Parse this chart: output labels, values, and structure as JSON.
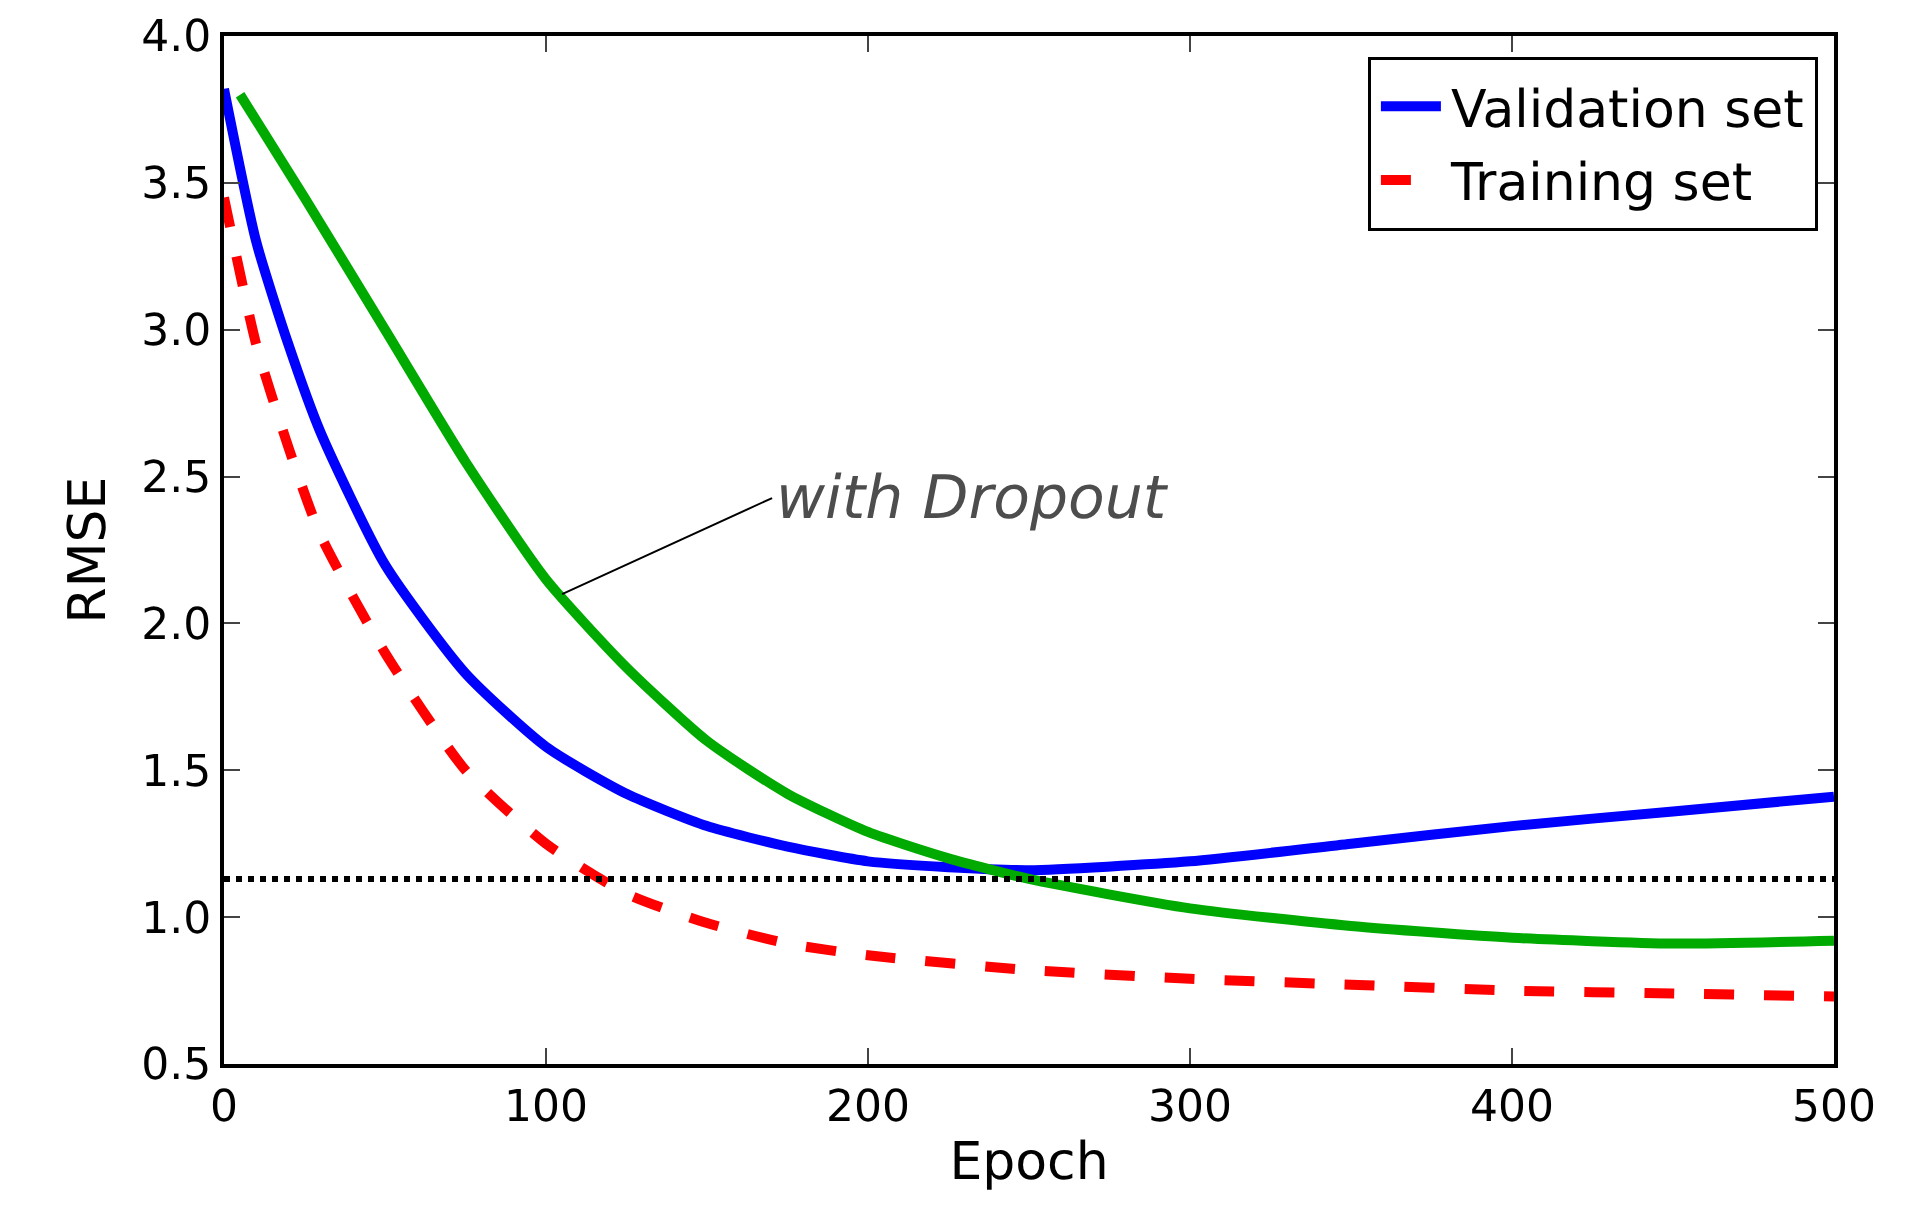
{
  "chart_data": {
    "type": "line",
    "xlabel": "Epoch",
    "ylabel": "RMSE",
    "xlim": [
      0,
      500
    ],
    "xticks": [
      0,
      100,
      200,
      300,
      400,
      500
    ],
    "ylim": [
      0.5,
      4.0
    ],
    "yticks": [
      0.5,
      {
        "value": 1,
        "label": "1.0"
      },
      1.5,
      {
        "value": 2,
        "label": "2.0"
      },
      2.5,
      {
        "value": 3,
        "label": "3.0"
      },
      3.5,
      {
        "value": 4,
        "label": "4.0"
      }
    ],
    "grid": false,
    "legend": "top right",
    "series": [
      {
        "name": "Validation set",
        "color": "#0000ff",
        "line_style": "solid",
        "x": [
          0,
          10,
          20,
          30,
          50,
          75,
          100,
          125,
          150,
          175,
          200,
          225,
          250,
          300,
          350,
          400,
          450,
          500
        ],
        "values": [
          3.82,
          3.3,
          2.95,
          2.65,
          2.2,
          1.83,
          1.58,
          1.42,
          1.31,
          1.24,
          1.19,
          1.17,
          1.16,
          1.19,
          1.25,
          1.31,
          1.36,
          1.41
        ]
      },
      {
        "name": "Training set",
        "color": "#ff0000",
        "line_style": "dashed",
        "x": [
          0,
          10,
          20,
          30,
          50,
          75,
          100,
          125,
          150,
          175,
          200,
          250,
          300,
          350,
          400,
          450,
          500
        ],
        "values": [
          3.45,
          2.95,
          2.6,
          2.3,
          1.9,
          1.5,
          1.25,
          1.08,
          0.98,
          0.91,
          0.87,
          0.82,
          0.79,
          0.77,
          0.75,
          0.74,
          0.73
        ]
      },
      {
        "color": "#00aa00",
        "line_style": "solid",
        "x": [
          5,
          25,
          50,
          75,
          100,
          125,
          150,
          175,
          200,
          225,
          250,
          300,
          350,
          400,
          450,
          500
        ],
        "values": [
          3.8,
          3.45,
          3.0,
          2.55,
          2.15,
          1.85,
          1.6,
          1.42,
          1.29,
          1.2,
          1.13,
          1.03,
          0.97,
          0.93,
          0.91,
          0.92
        ]
      }
    ],
    "ref_lines": [
      {
        "axis": "y",
        "value": 1.13,
        "color": "#000000",
        "line_style": "dotted"
      }
    ],
    "annotations": [
      {
        "text": "with Dropout",
        "x": 105,
        "y": 2.1
      }
    ]
  }
}
